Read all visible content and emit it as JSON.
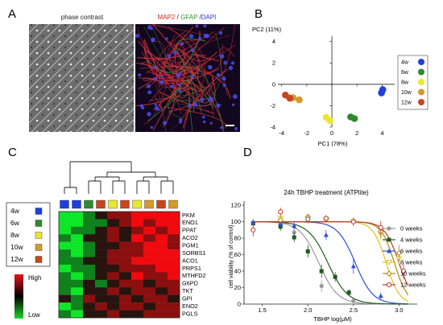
{
  "panels": {
    "A": {
      "letter": "A",
      "left_title": "phase contrast",
      "right_title": {
        "parts": [
          {
            "text": "MAP2",
            "color": "#d62c1e"
          },
          {
            "text": " / ",
            "color": "#222222"
          },
          {
            "text": "GFAP",
            "color": "#2b9a2b"
          },
          {
            "text": " /",
            "color": "#222222"
          },
          {
            "text": "DAPI",
            "color": "#2a35d8"
          }
        ]
      }
    },
    "B": {
      "letter": "B"
    },
    "C": {
      "letter": "C"
    },
    "D": {
      "letter": "D"
    }
  },
  "chart_data": [
    {
      "id": "pca",
      "type": "scatter",
      "xlabel": "PC1 (78%)",
      "ylabel": "PC2 (11%)",
      "xlim": [
        -4.3,
        5
      ],
      "ylim": [
        -4,
        4.5
      ],
      "xticks": [
        -4,
        -2,
        0,
        2,
        4
      ],
      "yticks": [
        -4,
        -2,
        0,
        2,
        4
      ],
      "grid": false,
      "legend": {
        "placement": "right",
        "entries": [
          {
            "label": "4w",
            "color": "#1f3fe0"
          },
          {
            "label": "6w",
            "color": "#2f8a2f"
          },
          {
            "label": "8w",
            "color": "#e8e832"
          },
          {
            "label": "10w",
            "color": "#d49a2a"
          },
          {
            "label": "12w",
            "color": "#c8461e"
          }
        ]
      },
      "series": [
        {
          "group": "4w",
          "color": "#1f3fe0",
          "points": [
            [
              4.05,
              -0.5
            ],
            [
              3.95,
              -0.8
            ]
          ]
        },
        {
          "group": "6w",
          "color": "#2f8a2f",
          "points": [
            [
              1.5,
              -3.05
            ],
            [
              1.8,
              -3.2
            ]
          ]
        },
        {
          "group": "8w",
          "color": "#e8e832",
          "points": [
            [
              -0.45,
              -3.1
            ],
            [
              -0.15,
              -3.4
            ]
          ]
        },
        {
          "group": "10w",
          "color": "#d49a2a",
          "points": [
            [
              -3.1,
              -1.25
            ],
            [
              -2.6,
              -1.45
            ]
          ]
        },
        {
          "group": "12w",
          "color": "#c8461e",
          "points": [
            [
              -3.7,
              -1.0
            ],
            [
              -3.35,
              -1.3
            ]
          ]
        }
      ]
    },
    {
      "id": "heatmap",
      "type": "heatmap",
      "genes": [
        "PKM",
        "ENO1",
        "PPAT",
        "ACO2",
        "PGM1",
        "SORBS1",
        "ACO1",
        "PRPS1",
        "MTHFD2",
        "G6PD",
        "TKT",
        "GPI",
        "ENO2",
        "PGLS"
      ],
      "column_groups": [
        "4w",
        "4w",
        "6w",
        "6w",
        "8w",
        "8w",
        "10w",
        "10w",
        "12w",
        "12w"
      ],
      "column_colors": [
        "#1f3fe0",
        "#1f3fe0",
        "#2f8a2f",
        "#c8461e",
        "#e8e832",
        "#c8461e",
        "#e8e832",
        "#d49a2a",
        "#c8461e",
        "#d49a2a"
      ],
      "group_legend": [
        {
          "label": "4w",
          "color": "#1f3fe0"
        },
        {
          "label": "6w",
          "color": "#2f8a2f"
        },
        {
          "label": "8w",
          "color": "#e8e832"
        },
        {
          "label": "10w",
          "color": "#d49a2a"
        },
        {
          "label": "12w",
          "color": "#c8461e"
        }
      ],
      "colorbar": {
        "high_label": "High",
        "low_label": "Low"
      },
      "values": [
        [
          -2,
          -2,
          -1,
          0,
          1,
          1,
          2,
          2,
          2,
          2
        ],
        [
          -2,
          -2,
          -1,
          -1,
          0,
          1,
          2,
          1,
          2,
          2
        ],
        [
          -2,
          -1,
          -1,
          0,
          1,
          0,
          1,
          2,
          1,
          2
        ],
        [
          -1,
          -2,
          0,
          0,
          1,
          0,
          2,
          1,
          2,
          1
        ],
        [
          -2,
          -2,
          -1,
          0,
          0,
          1,
          1,
          2,
          2,
          1
        ],
        [
          -1,
          -2,
          -1,
          0,
          1,
          1,
          1,
          2,
          2,
          2
        ],
        [
          -1,
          -1,
          0,
          0,
          1,
          1,
          2,
          2,
          2,
          2
        ],
        [
          -2,
          -1,
          -1,
          0,
          0,
          1,
          1,
          1,
          2,
          2
        ],
        [
          -1,
          -2,
          -1,
          0,
          1,
          0,
          2,
          1,
          1,
          2
        ],
        [
          -1,
          -1,
          0,
          -1,
          0,
          1,
          1,
          0,
          1,
          1
        ],
        [
          -1,
          -2,
          0,
          0,
          1,
          0,
          1,
          1,
          0,
          1
        ],
        [
          0,
          -1,
          1,
          0,
          0,
          1,
          0,
          1,
          1,
          0
        ],
        [
          -2,
          -1,
          0,
          1,
          0,
          1,
          1,
          0,
          1,
          1
        ],
        [
          -1,
          -2,
          0,
          0,
          1,
          0,
          0,
          1,
          1,
          1
        ]
      ]
    },
    {
      "id": "viability",
      "type": "line",
      "title": "24h TBHP treatment (ATPlite)",
      "xlabel": "TBHP log(μM)",
      "ylabel": "cell viability (% of control)",
      "xlim": [
        1.3,
        3.2
      ],
      "ylim": [
        0,
        125
      ],
      "xticks": [
        1.5,
        2.0,
        2.5,
        3.0
      ],
      "yticks": [
        0,
        20,
        40,
        60,
        80,
        100,
        120
      ],
      "legend_placement": "right",
      "series": [
        {
          "name": "0 weeks",
          "color": "#9a9a9a",
          "marker": "circle-filled",
          "ic50": 2.12,
          "hill": 4.2,
          "points": [
            [
              1.4,
              99,
              4
            ],
            [
              1.7,
              96,
              5
            ],
            [
              1.85,
              87,
              6
            ],
            [
              2.0,
              64,
              8
            ],
            [
              2.15,
              22,
              7
            ],
            [
              2.5,
              4,
              3
            ]
          ]
        },
        {
          "name": "4 weeks",
          "color": "#1f5c1f",
          "marker": "square-filled",
          "ic50": 2.22,
          "hill": 4.0,
          "points": [
            [
              1.4,
              98,
              3
            ],
            [
              1.7,
              94,
              5
            ],
            [
              1.85,
              81,
              6
            ],
            [
              2.0,
              64,
              7
            ],
            [
              2.15,
              40,
              8
            ],
            [
              2.3,
              33,
              6
            ],
            [
              2.45,
              14,
              4
            ]
          ]
        },
        {
          "name": "6 weeks",
          "color": "#2e4fd6",
          "marker": "triangle-filled",
          "ic50": 2.52,
          "hill": 4.5,
          "points": [
            [
              1.4,
              99,
              4
            ],
            [
              1.7,
              98,
              5
            ],
            [
              1.85,
              95,
              5
            ],
            [
              2.2,
              84,
              6
            ],
            [
              2.5,
              46,
              9
            ],
            [
              2.8,
              10,
              4
            ]
          ]
        },
        {
          "name": "8 weeks",
          "color": "#e3c21a",
          "marker": "triangle-down-open",
          "ic50": 2.86,
          "hill": 6.0,
          "points": [
            [
              1.7,
              104,
              4
            ],
            [
              2.0,
              104,
              4
            ],
            [
              2.2,
              103,
              4
            ],
            [
              2.5,
              100,
              4
            ],
            [
              2.8,
              85,
              8
            ],
            [
              3.0,
              55,
              9
            ]
          ]
        },
        {
          "name": "10 weeks",
          "color": "#a88a1a",
          "marker": "diamond-open",
          "ic50": 2.95,
          "hill": 6.0,
          "points": [
            [
              1.7,
              102,
              5
            ],
            [
              2.0,
              106,
              4
            ],
            [
              2.2,
              103,
              4
            ],
            [
              2.5,
              100,
              4
            ],
            [
              2.8,
              88,
              8
            ],
            [
              3.0,
              62,
              10
            ]
          ]
        },
        {
          "name": "12 weeks",
          "color": "#c0392b",
          "marker": "circle-open",
          "ic50": 3.0,
          "hill": 5.5,
          "points": [
            [
              1.4,
              90,
              8
            ],
            [
              1.7,
              112,
              5
            ],
            [
              2.0,
              103,
              5
            ],
            [
              2.2,
              104,
              4
            ],
            [
              2.5,
              100,
              5
            ],
            [
              2.8,
              93,
              8
            ],
            [
              3.05,
              40,
              10
            ]
          ]
        }
      ]
    }
  ]
}
